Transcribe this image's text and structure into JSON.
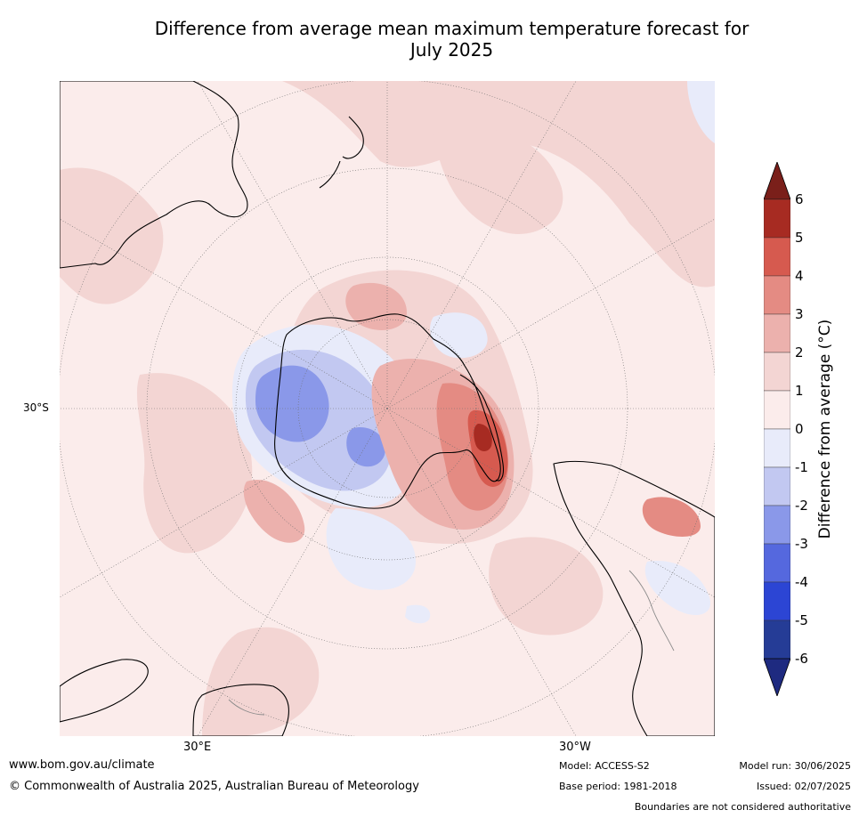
{
  "header": {
    "title_line1": "Difference from average mean maximum temperature forecast for",
    "title_line2": "July 2025"
  },
  "map": {
    "lat_label": "30°S",
    "lon_labels": [
      "30°E",
      "30°W"
    ],
    "colors": {
      "ocean_default": "#fbeceb",
      "warm_1": "#f3d5d3",
      "warm_2": "#ecb1ad",
      "warm_3": "#e48b83",
      "warm_4": "#d65a4f",
      "warm_5": "#a72b22",
      "warm_6": "#7a1f1a",
      "cool_1": "#e8ebfa",
      "cool_2": "#c2c8f1",
      "cool_3": "#8a98e9",
      "cool_4": "#5568de",
      "cool_5": "#2c45d4",
      "cool_6": "#253c96",
      "coast": "#000000",
      "boundary": "#8a8a8a",
      "grid": "#6e6e6e"
    }
  },
  "colorbar": {
    "label": "Difference from average (°C)",
    "ticks": [
      "6",
      "5",
      "4",
      "3",
      "2",
      "1",
      "0",
      "-1",
      "-2",
      "-3",
      "-4",
      "-5",
      "-6"
    ],
    "bands": [
      "#a72b22",
      "#d65a4f",
      "#e48b83",
      "#ecb1ad",
      "#f3d5d3",
      "#fbeceb",
      "#e8ebfa",
      "#c2c8f1",
      "#8a98e9",
      "#5568de",
      "#2c45d4",
      "#253c96"
    ],
    "top_arrow": "#7a1f1a",
    "bottom_arrow": "#1e2a80"
  },
  "footer": {
    "website": "www.bom.gov.au/climate",
    "copyright": "© Commonwealth of Australia 2025, Australian Bureau of Meteorology",
    "model": "Model: ACCESS-S2",
    "base_period": "Base period: 1981-2018",
    "model_run": "Model run: 30/06/2025",
    "issued": "Issued: 02/07/2025",
    "disclaimer": "Boundaries are not considered authoritative"
  }
}
